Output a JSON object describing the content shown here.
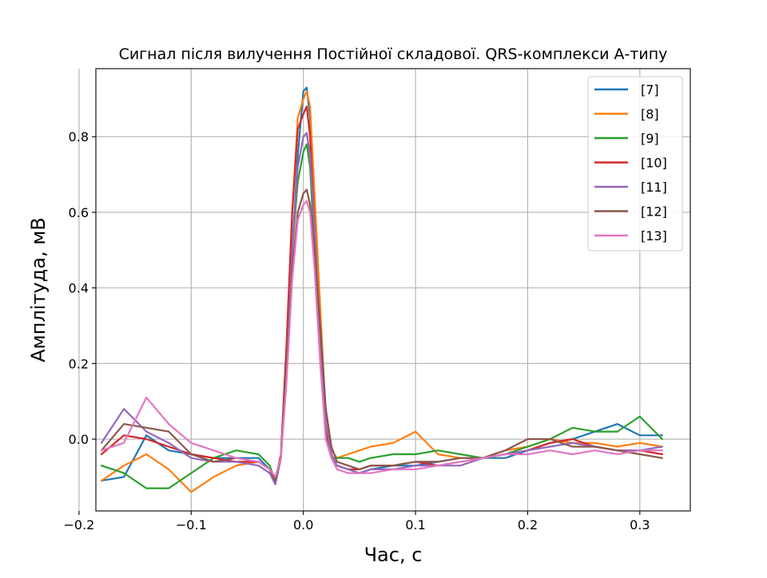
{
  "chart_data": {
    "type": "line",
    "title": "Сигнал після вилучення Постійної складової. QRS-комплекси А-типу",
    "xlabel": "Час, с",
    "ylabel": "Амплітуда, мВ",
    "xlim": [
      -0.185,
      0.345
    ],
    "ylim": [
      -0.19,
      0.98
    ],
    "xticks": [
      -0.2,
      -0.1,
      0.0,
      0.1,
      0.2,
      0.3
    ],
    "xtick_labels": [
      "−0.2",
      "−0.1",
      "0.0",
      "0.1",
      "0.2",
      "0.3"
    ],
    "yticks": [
      0.0,
      0.2,
      0.4,
      0.6,
      0.8
    ],
    "ytick_labels": [
      "0.0",
      "0.2",
      "0.4",
      "0.6",
      "0.8"
    ],
    "grid": true,
    "legend_position": "top-right",
    "x": [
      -0.18,
      -0.16,
      -0.14,
      -0.12,
      -0.1,
      -0.08,
      -0.06,
      -0.04,
      -0.03,
      -0.025,
      -0.02,
      -0.015,
      -0.01,
      -0.005,
      0.0,
      0.003,
      0.006,
      0.01,
      0.015,
      0.02,
      0.025,
      0.03,
      0.04,
      0.05,
      0.06,
      0.08,
      0.1,
      0.12,
      0.14,
      0.16,
      0.18,
      0.2,
      0.22,
      0.24,
      0.26,
      0.28,
      0.3,
      0.32
    ],
    "series": [
      {
        "name": "[7]",
        "color": "#1f77b4",
        "values": [
          -0.11,
          -0.1,
          0.01,
          -0.03,
          -0.04,
          -0.05,
          -0.05,
          -0.05,
          -0.08,
          -0.11,
          -0.05,
          0.2,
          0.5,
          0.75,
          0.92,
          0.93,
          0.85,
          0.6,
          0.3,
          0.05,
          -0.04,
          -0.07,
          -0.08,
          -0.09,
          -0.08,
          -0.07,
          -0.07,
          -0.06,
          -0.05,
          -0.05,
          -0.05,
          -0.03,
          -0.01,
          0.0,
          0.02,
          0.04,
          0.01,
          0.01
        ]
      },
      {
        "name": "[8]",
        "color": "#ff7f0e",
        "values": [
          -0.11,
          -0.07,
          -0.04,
          -0.08,
          -0.14,
          -0.1,
          -0.07,
          -0.06,
          -0.08,
          -0.11,
          -0.05,
          0.25,
          0.6,
          0.85,
          0.9,
          0.92,
          0.88,
          0.65,
          0.35,
          0.06,
          -0.03,
          -0.05,
          -0.04,
          -0.03,
          -0.02,
          -0.01,
          0.02,
          -0.04,
          -0.05,
          -0.05,
          -0.03,
          -0.02,
          0.0,
          -0.01,
          -0.01,
          -0.02,
          -0.01,
          -0.02
        ]
      },
      {
        "name": "[9]",
        "color": "#2ca02c",
        "values": [
          -0.07,
          -0.09,
          -0.13,
          -0.13,
          -0.09,
          -0.05,
          -0.03,
          -0.04,
          -0.07,
          -0.11,
          -0.05,
          0.2,
          0.5,
          0.68,
          0.76,
          0.78,
          0.72,
          0.5,
          0.25,
          0.0,
          -0.05,
          -0.05,
          -0.05,
          -0.06,
          -0.05,
          -0.04,
          -0.04,
          -0.03,
          -0.04,
          -0.05,
          -0.04,
          -0.02,
          0.0,
          0.03,
          0.02,
          0.02,
          0.06,
          0.0
        ]
      },
      {
        "name": "[10]",
        "color": "#d62728",
        "values": [
          -0.04,
          0.01,
          0.0,
          -0.02,
          -0.04,
          -0.05,
          -0.06,
          -0.06,
          -0.08,
          -0.11,
          -0.04,
          0.25,
          0.6,
          0.82,
          0.86,
          0.88,
          0.8,
          0.55,
          0.25,
          0.02,
          -0.05,
          -0.07,
          -0.08,
          -0.08,
          -0.07,
          -0.07,
          -0.06,
          -0.07,
          -0.06,
          -0.05,
          -0.04,
          -0.03,
          -0.01,
          0.0,
          -0.02,
          -0.03,
          -0.03,
          -0.04
        ]
      },
      {
        "name": "[11]",
        "color": "#9467bd",
        "values": [
          -0.01,
          0.08,
          0.02,
          -0.01,
          -0.05,
          -0.06,
          -0.06,
          -0.07,
          -0.09,
          -0.12,
          -0.05,
          0.2,
          0.5,
          0.72,
          0.8,
          0.81,
          0.75,
          0.55,
          0.28,
          0.04,
          -0.04,
          -0.07,
          -0.08,
          -0.09,
          -0.08,
          -0.08,
          -0.07,
          -0.07,
          -0.07,
          -0.05,
          -0.04,
          -0.03,
          -0.02,
          -0.01,
          -0.02,
          -0.03,
          -0.03,
          -0.02
        ]
      },
      {
        "name": "[12]",
        "color": "#8c564b",
        "values": [
          -0.03,
          0.04,
          0.03,
          0.02,
          -0.04,
          -0.06,
          -0.05,
          -0.06,
          -0.08,
          -0.11,
          -0.05,
          0.2,
          0.45,
          0.6,
          0.65,
          0.66,
          0.62,
          0.5,
          0.3,
          0.08,
          -0.02,
          -0.06,
          -0.07,
          -0.08,
          -0.07,
          -0.07,
          -0.06,
          -0.06,
          -0.05,
          -0.05,
          -0.03,
          0.0,
          0.0,
          -0.02,
          -0.02,
          -0.03,
          -0.04,
          -0.05
        ]
      },
      {
        "name": "[13]",
        "color": "#e377c2",
        "values": [
          -0.03,
          -0.01,
          0.11,
          0.04,
          -0.01,
          -0.03,
          -0.05,
          -0.06,
          -0.08,
          -0.1,
          -0.05,
          0.15,
          0.42,
          0.58,
          0.62,
          0.63,
          0.6,
          0.45,
          0.2,
          0.0,
          -0.05,
          -0.08,
          -0.09,
          -0.09,
          -0.09,
          -0.08,
          -0.08,
          -0.07,
          -0.06,
          -0.05,
          -0.04,
          -0.04,
          -0.03,
          -0.04,
          -0.03,
          -0.04,
          -0.03,
          -0.03
        ]
      }
    ]
  }
}
